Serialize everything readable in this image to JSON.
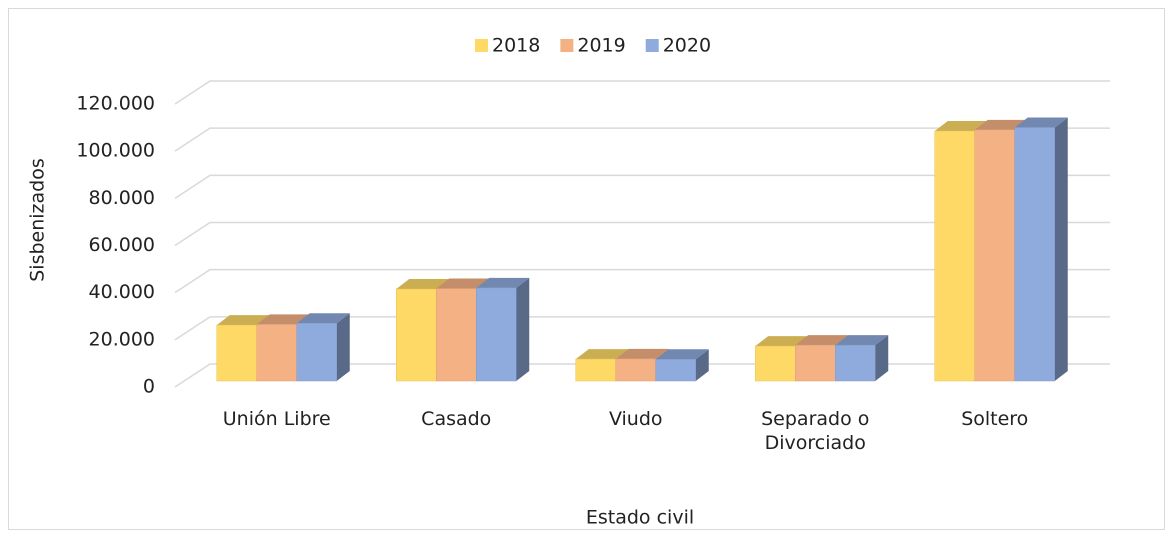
{
  "chart_data": {
    "type": "bar3d",
    "x_label": "Estado civil",
    "y_label": "Sisbenizados",
    "categories": [
      "Unión Libre",
      "Casado",
      "Viudo",
      "Separado o Divorciado",
      "Soltero"
    ],
    "series": [
      {
        "name": "2018",
        "color": "#FFD966",
        "values": [
          23700,
          39000,
          9300,
          14800,
          106000
        ]
      },
      {
        "name": "2019",
        "color": "#F4B183",
        "values": [
          24000,
          39200,
          9400,
          15200,
          106500
        ]
      },
      {
        "name": "2020",
        "color": "#8FAADC",
        "values": [
          24500,
          39500,
          9200,
          15200,
          107500
        ]
      }
    ],
    "ylim": [
      0,
      120000
    ],
    "yticks": [
      0,
      {
        "value": 20000,
        "label": "20.000"
      },
      {
        "value": 40000,
        "label": "40.000"
      },
      {
        "value": 60000,
        "label": "60.000"
      },
      {
        "value": 80000,
        "label": "80.000"
      },
      {
        "value": 100000,
        "label": "100.000"
      },
      {
        "value": 120000,
        "label": "120.000"
      }
    ],
    "grid": true,
    "legend": "top"
  }
}
